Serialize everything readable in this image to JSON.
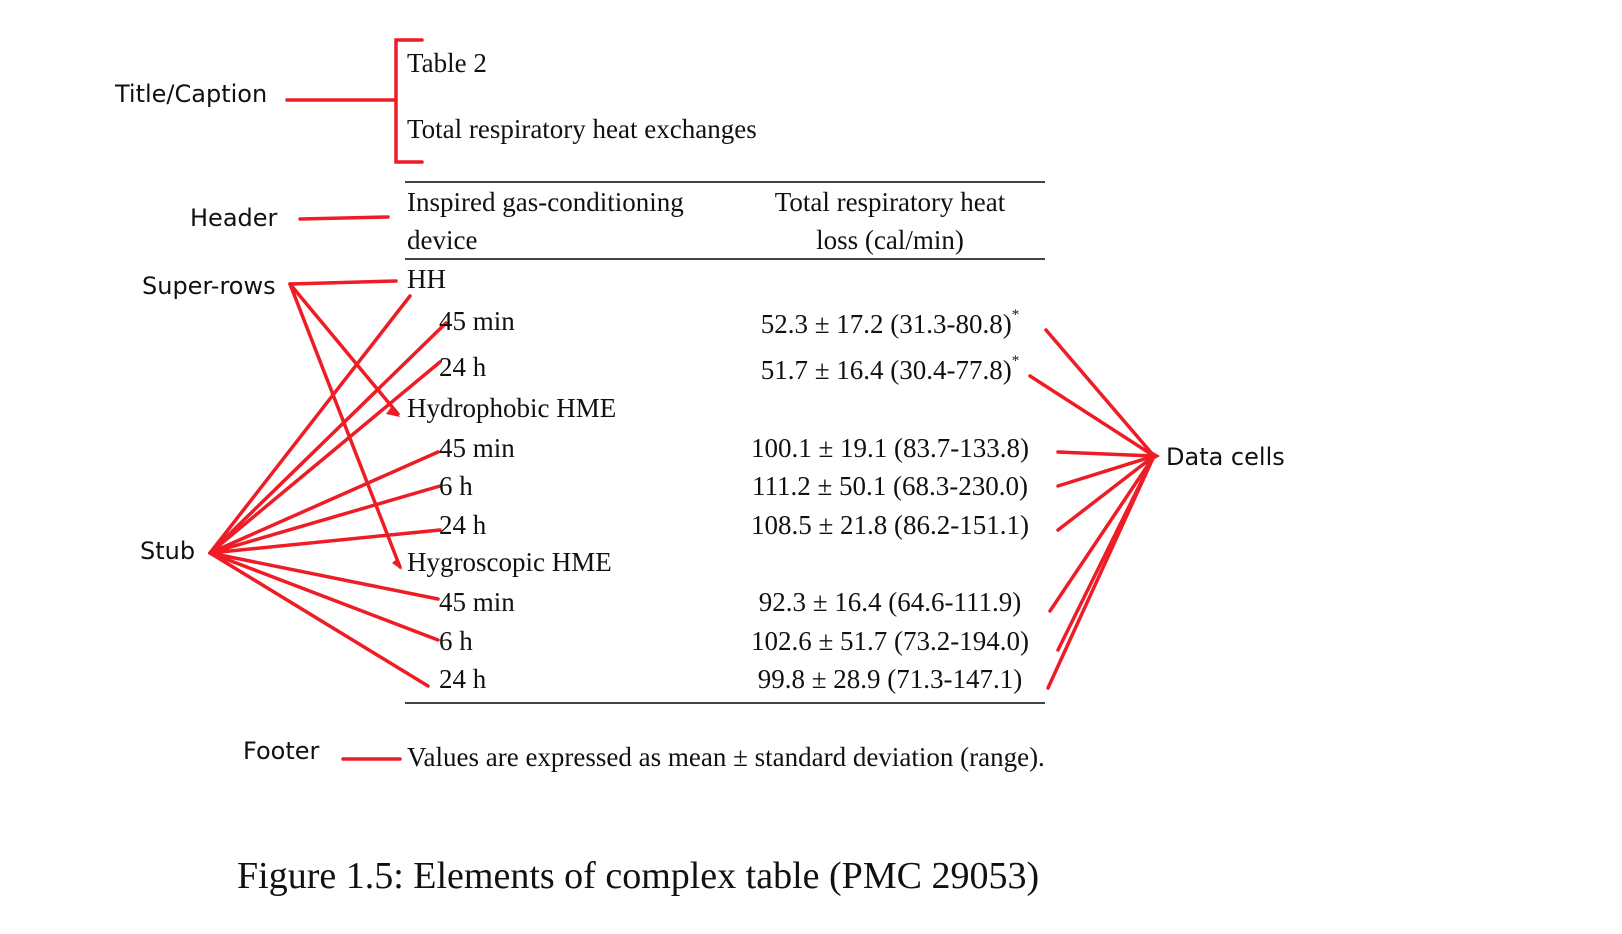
{
  "annotations": {
    "title_caption": "Title/Caption",
    "header": "Header",
    "super_rows": "Super-rows",
    "stub": "Stub",
    "data_cells": "Data cells",
    "footer": "Footer"
  },
  "table": {
    "label": "Table 2",
    "caption": "Total respiratory heat exchanges",
    "header": {
      "col1_line1": "Inspired gas-conditioning",
      "col1_line2": "device",
      "col2_line1": "Total respiratory heat",
      "col2_line2": "loss (cal/min)"
    },
    "groups": [
      {
        "name": "HH",
        "rows": [
          {
            "stub": "45 min",
            "value": "52.3 ± 17.2 (31.3-80.8)",
            "sup": "*"
          },
          {
            "stub": "24 h",
            "value": "51.7 ± 16.4 (30.4-77.8)",
            "sup": "*"
          }
        ]
      },
      {
        "name": "Hydrophobic HME",
        "rows": [
          {
            "stub": "45 min",
            "value": "100.1 ± 19.1 (83.7-133.8)"
          },
          {
            "stub": "6 h",
            "value": "111.2 ± 50.1 (68.3-230.0)"
          },
          {
            "stub": "24 h",
            "value": "108.5 ± 21.8 (86.2-151.1)"
          }
        ]
      },
      {
        "name": "Hygroscopic HME",
        "rows": [
          {
            "stub": "45 min",
            "value": "92.3 ± 16.4 (64.6-111.9)"
          },
          {
            "stub": "6 h",
            "value": "102.6 ± 51.7 (73.2-194.0)"
          },
          {
            "stub": "24 h",
            "value": "99.8 ± 28.9 (71.3-147.1)"
          }
        ]
      }
    ],
    "footer": "Values are expressed as mean ± standard deviation (range)."
  },
  "figure_caption": "Figure 1.5: Elements of complex table (PMC 29053)",
  "colors": {
    "annotation": "#ee1c25",
    "text": "#111111",
    "rule": "#444444"
  }
}
